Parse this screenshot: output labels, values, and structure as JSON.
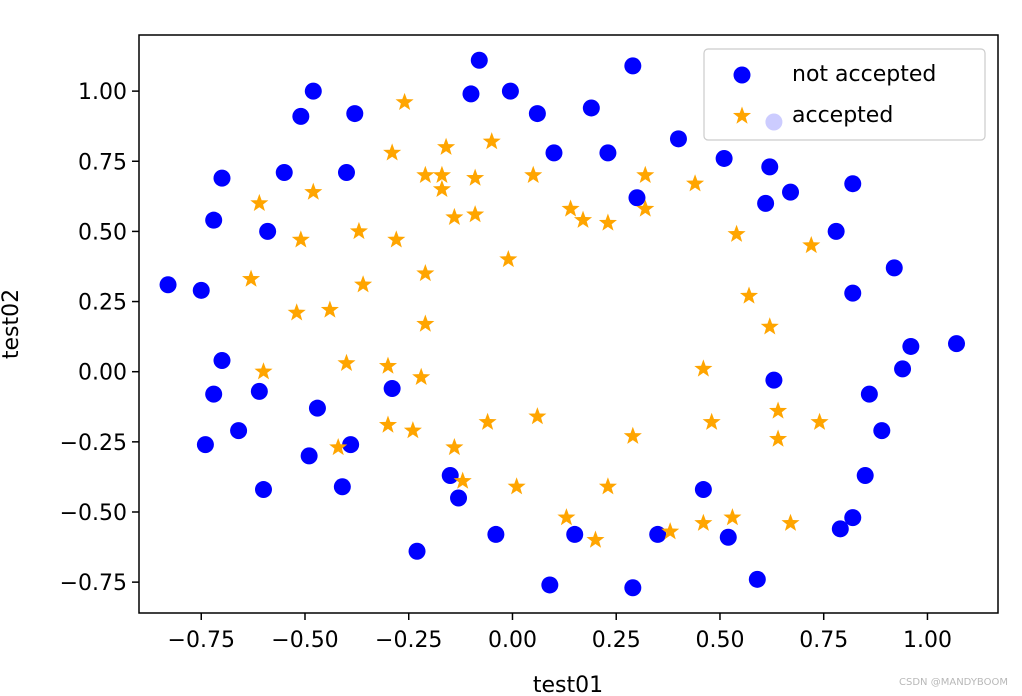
{
  "chart_data": {
    "type": "scatter",
    "title": "",
    "xlabel": "test01",
    "ylabel": "test02",
    "xlim": [
      -0.9,
      1.17
    ],
    "ylim": [
      -0.86,
      1.2
    ],
    "xticks": [
      -0.75,
      -0.5,
      -0.25,
      0.0,
      0.25,
      0.5,
      0.75,
      1.0
    ],
    "xtick_labels": [
      "−0.75",
      "−0.50",
      "−0.25",
      "0.00",
      "0.25",
      "0.50",
      "0.75",
      "1.00"
    ],
    "yticks": [
      -0.75,
      -0.5,
      -0.25,
      0.0,
      0.25,
      0.5,
      0.75,
      1.0
    ],
    "ytick_labels": [
      "−0.75",
      "−0.50",
      "−0.25",
      "0.00",
      "0.25",
      "0.50",
      "0.75",
      "1.00"
    ],
    "legend_position": "top-right",
    "series": [
      {
        "name": "not accepted",
        "marker": "circle",
        "color": "#0000ff",
        "points": [
          [
            -0.08,
            1.11
          ],
          [
            0.29,
            1.09
          ],
          [
            -0.48,
            1.0
          ],
          [
            -0.1,
            0.99
          ],
          [
            -0.005,
            1.0
          ],
          [
            -0.51,
            0.91
          ],
          [
            -0.38,
            0.92
          ],
          [
            0.06,
            0.92
          ],
          [
            0.19,
            0.94
          ],
          [
            0.4,
            0.83
          ],
          [
            0.63,
            0.89
          ],
          [
            0.1,
            0.78
          ],
          [
            0.23,
            0.78
          ],
          [
            0.51,
            0.76
          ],
          [
            0.62,
            0.73
          ],
          [
            -0.55,
            0.71
          ],
          [
            -0.4,
            0.71
          ],
          [
            -0.7,
            0.69
          ],
          [
            0.82,
            0.67
          ],
          [
            0.67,
            0.64
          ],
          [
            0.3,
            0.62
          ],
          [
            0.61,
            0.6
          ],
          [
            -0.72,
            0.54
          ],
          [
            -0.59,
            0.5
          ],
          [
            0.78,
            0.5
          ],
          [
            0.92,
            0.37
          ],
          [
            -0.83,
            0.31
          ],
          [
            -0.75,
            0.29
          ],
          [
            0.82,
            0.28
          ],
          [
            1.07,
            0.1
          ],
          [
            0.96,
            0.09
          ],
          [
            -0.7,
            0.04
          ],
          [
            0.94,
            0.01
          ],
          [
            -0.72,
            -0.08
          ],
          [
            -0.61,
            -0.07
          ],
          [
            -0.29,
            -0.06
          ],
          [
            0.63,
            -0.03
          ],
          [
            0.86,
            -0.08
          ],
          [
            -0.47,
            -0.13
          ],
          [
            -0.66,
            -0.21
          ],
          [
            -0.74,
            -0.26
          ],
          [
            -0.39,
            -0.26
          ],
          [
            0.89,
            -0.21
          ],
          [
            -0.49,
            -0.3
          ],
          [
            -0.15,
            -0.37
          ],
          [
            0.85,
            -0.37
          ],
          [
            -0.41,
            -0.41
          ],
          [
            -0.6,
            -0.42
          ],
          [
            0.46,
            -0.42
          ],
          [
            -0.13,
            -0.45
          ],
          [
            0.82,
            -0.52
          ],
          [
            -0.04,
            -0.58
          ],
          [
            0.15,
            -0.58
          ],
          [
            0.35,
            -0.58
          ],
          [
            0.52,
            -0.59
          ],
          [
            0.79,
            -0.56
          ],
          [
            -0.23,
            -0.64
          ],
          [
            0.59,
            -0.74
          ],
          [
            0.09,
            -0.76
          ],
          [
            0.29,
            -0.77
          ]
        ]
      },
      {
        "name": "accepted",
        "marker": "star",
        "color": "#ffa500",
        "points": [
          [
            -0.26,
            0.96
          ],
          [
            -0.05,
            0.82
          ],
          [
            -0.16,
            0.8
          ],
          [
            -0.29,
            0.78
          ],
          [
            -0.21,
            0.7
          ],
          [
            -0.17,
            0.7
          ],
          [
            -0.09,
            0.69
          ],
          [
            0.05,
            0.7
          ],
          [
            0.32,
            0.7
          ],
          [
            -0.17,
            0.65
          ],
          [
            -0.48,
            0.64
          ],
          [
            0.44,
            0.67
          ],
          [
            -0.61,
            0.6
          ],
          [
            0.32,
            0.58
          ],
          [
            0.14,
            0.58
          ],
          [
            0.17,
            0.54
          ],
          [
            0.23,
            0.53
          ],
          [
            -0.14,
            0.55
          ],
          [
            -0.09,
            0.56
          ],
          [
            -0.37,
            0.5
          ],
          [
            -0.51,
            0.47
          ],
          [
            -0.28,
            0.47
          ],
          [
            0.54,
            0.49
          ],
          [
            0.72,
            0.45
          ],
          [
            -0.01,
            0.4
          ],
          [
            -0.21,
            0.35
          ],
          [
            -0.63,
            0.33
          ],
          [
            -0.36,
            0.31
          ],
          [
            0.57,
            0.27
          ],
          [
            -0.52,
            0.21
          ],
          [
            -0.44,
            0.22
          ],
          [
            -0.21,
            0.17
          ],
          [
            0.62,
            0.16
          ],
          [
            -0.4,
            0.03
          ],
          [
            -0.3,
            0.02
          ],
          [
            -0.6,
            0.0
          ],
          [
            -0.22,
            -0.02
          ],
          [
            0.46,
            0.01
          ],
          [
            0.64,
            -0.14
          ],
          [
            0.06,
            -0.16
          ],
          [
            -0.3,
            -0.19
          ],
          [
            -0.24,
            -0.21
          ],
          [
            -0.06,
            -0.18
          ],
          [
            0.48,
            -0.18
          ],
          [
            0.74,
            -0.18
          ],
          [
            0.29,
            -0.23
          ],
          [
            0.64,
            -0.24
          ],
          [
            -0.14,
            -0.27
          ],
          [
            -0.42,
            -0.27
          ],
          [
            -0.12,
            -0.39
          ],
          [
            0.01,
            -0.41
          ],
          [
            0.23,
            -0.41
          ],
          [
            0.13,
            -0.52
          ],
          [
            0.46,
            -0.54
          ],
          [
            0.53,
            -0.52
          ],
          [
            0.67,
            -0.54
          ],
          [
            0.38,
            -0.57
          ],
          [
            0.2,
            -0.6
          ]
        ]
      }
    ]
  },
  "watermark": "CSDN @MANDYBOOM"
}
